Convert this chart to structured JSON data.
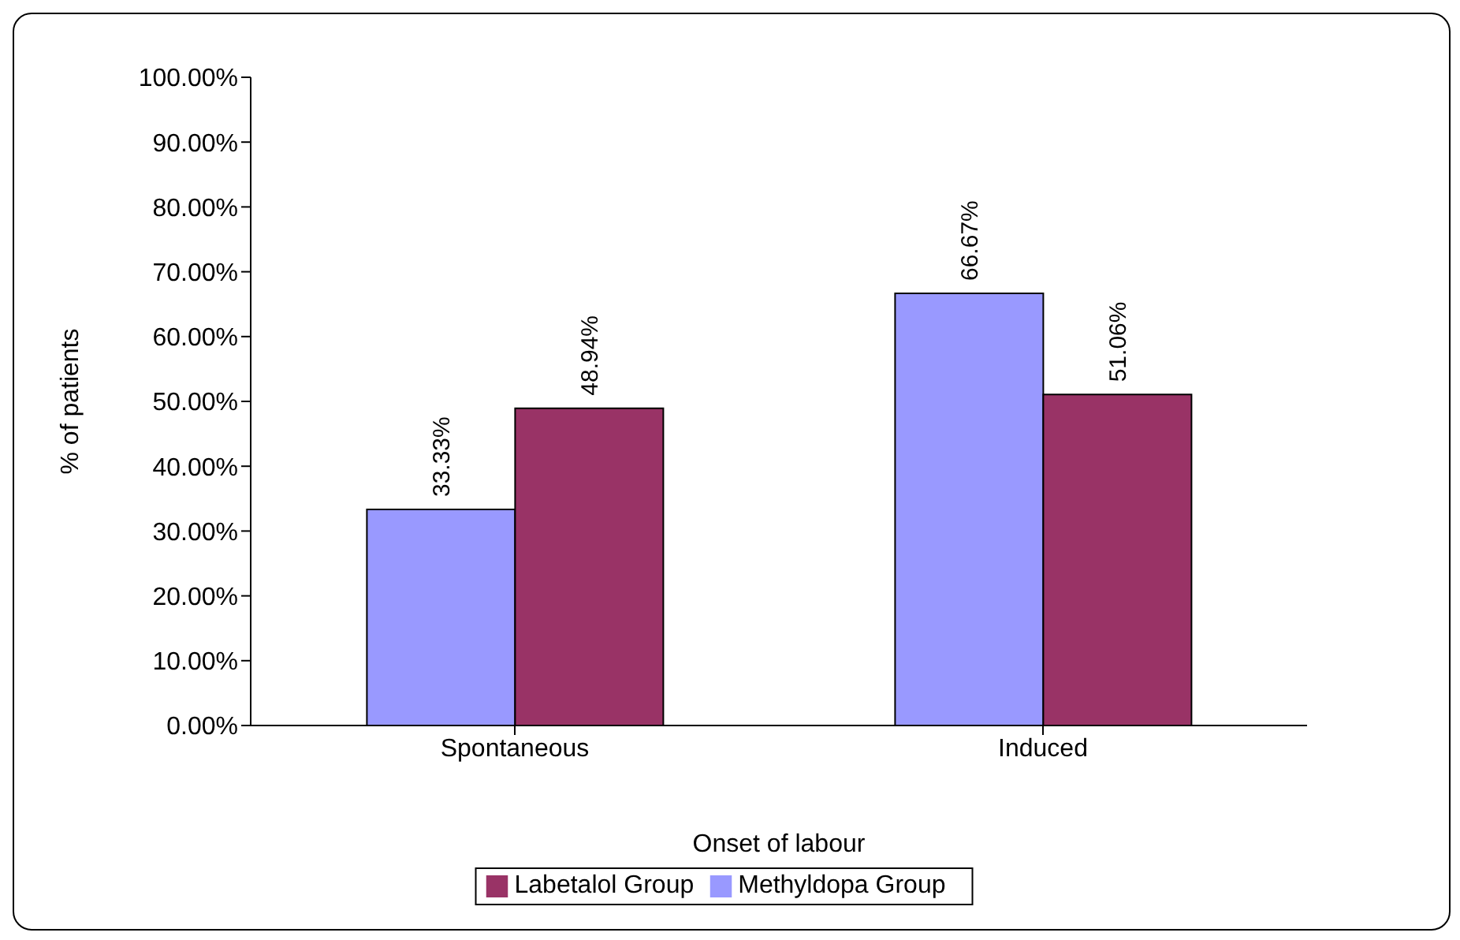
{
  "chart_data": {
    "type": "bar",
    "xlabel": "Onset of labour",
    "ylabel": "% of patients",
    "categories": [
      "Spontaneous",
      "Induced"
    ],
    "series": [
      {
        "name": "Methyldopa Group",
        "color": "#9999ff",
        "values": [
          33.33,
          66.67
        ],
        "value_labels": [
          "33.33%",
          "66.67%"
        ]
      },
      {
        "name": "Labetalol Group",
        "color": "#993366",
        "values": [
          48.94,
          51.06
        ],
        "value_labels": [
          "48.94%",
          "51.06%"
        ]
      }
    ],
    "ylim": [
      0,
      100
    ],
    "yticks": [
      {
        "value": 0,
        "label": "0.00%"
      },
      {
        "value": 10,
        "label": "10.00%"
      },
      {
        "value": 20,
        "label": "20.00%"
      },
      {
        "value": 30,
        "label": "30.00%"
      },
      {
        "value": 40,
        "label": "40.00%"
      },
      {
        "value": 50,
        "label": "50.00%"
      },
      {
        "value": 60,
        "label": "60.00%"
      },
      {
        "value": 70,
        "label": "70.00%"
      },
      {
        "value": 80,
        "label": "80.00%"
      },
      {
        "value": 90,
        "label": "90.00%"
      },
      {
        "value": 100,
        "label": "100.00%"
      }
    ],
    "legend": "bottom",
    "grid": false
  }
}
